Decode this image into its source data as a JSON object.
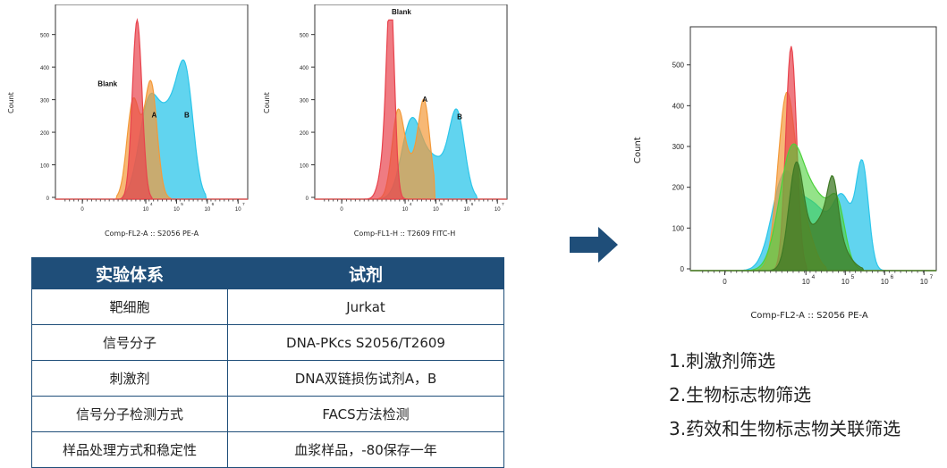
{
  "charts": [
    {
      "id": "chart1",
      "ylabel": "Count",
      "xlabel": "Comp-FL2-A :: S2056 PE-A",
      "yticks": [
        "0",
        "100",
        "200",
        "300",
        "400",
        "500"
      ],
      "xticks": [
        "0",
        "10",
        "10",
        "10",
        "10"
      ],
      "xticks_exp": [
        "",
        "4",
        "5",
        "6",
        "7"
      ],
      "annotations": [
        "Blank",
        "A",
        "B"
      ]
    },
    {
      "id": "chart2",
      "ylabel": "Count",
      "xlabel": "Comp-FL1-H :: T2609 FITC-H",
      "yticks": [
        "0",
        "100",
        "200",
        "300",
        "400",
        "500"
      ],
      "xticks": [
        "0",
        "10",
        "10",
        "10",
        "10"
      ],
      "xticks_exp": [
        "",
        "4",
        "5",
        "6",
        "7"
      ],
      "annotations": [
        "Blank",
        "A",
        "B"
      ]
    },
    {
      "id": "chart3",
      "ylabel": "Count",
      "xlabel": "Comp-FL2-A :: S2056 PE-A",
      "yticks": [
        "0",
        "100",
        "200",
        "300",
        "400",
        "500"
      ],
      "xticks": [
        "0",
        "10",
        "10",
        "10",
        "10"
      ],
      "xticks_exp": [
        "",
        "4",
        "5",
        "6",
        "7"
      ]
    }
  ],
  "table": {
    "headers": [
      "实验体系",
      "试剂"
    ],
    "rows": [
      [
        "靶细胞",
        "Jurkat"
      ],
      [
        "信号分子",
        "DNA-PKcs S2056/T2609"
      ],
      [
        "刺激剂",
        "DNA双链损伤试剂A，B"
      ],
      [
        "信号分子检测方式",
        "FACS方法检测"
      ],
      [
        "样品处理方式和稳定性",
        "血浆样品，-80保存一年"
      ]
    ]
  },
  "list": [
    "1.刺激剂筛选",
    "2.生物标志物筛选",
    "3.药效和生物标志物关联筛选"
  ],
  "colors": {
    "header_bg": "#1f4e79",
    "arrow": "#1f4e79",
    "red": "#e8434d",
    "orange": "#f39a3a",
    "cyan": "#2cc6ea",
    "green": "#4cd13b",
    "darkgreen": "#3f7a25"
  }
}
